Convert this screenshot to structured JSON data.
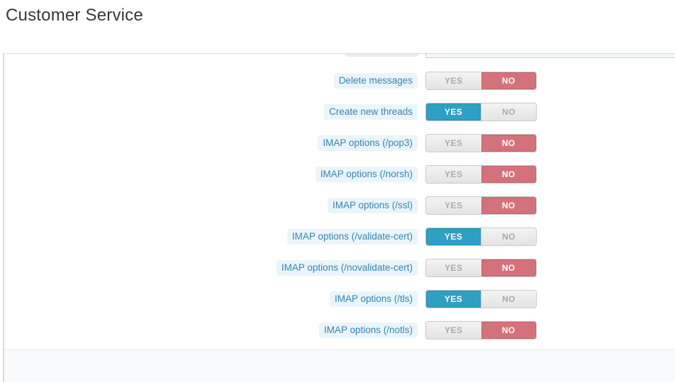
{
  "page": {
    "title": "Customer Service"
  },
  "settings": {
    "toggle": {
      "yes": "YES",
      "no": "NO"
    },
    "rows": [
      {
        "label": "Delete messages",
        "value": "NO"
      },
      {
        "label": "Create new threads",
        "value": "YES"
      },
      {
        "label": "IMAP options (/pop3)",
        "value": "NO"
      },
      {
        "label": "IMAP options (/norsh)",
        "value": "NO"
      },
      {
        "label": "IMAP options (/ssl)",
        "value": "NO"
      },
      {
        "label": "IMAP options (/validate-cert)",
        "value": "YES"
      },
      {
        "label": "IMAP options (/novalidate-cert)",
        "value": "NO"
      },
      {
        "label": "IMAP options (/tls)",
        "value": "YES"
      },
      {
        "label": "IMAP options (/notls)",
        "value": "NO"
      }
    ]
  },
  "colors": {
    "yes_active": "#2f9fc4",
    "no_active": "#d4727c",
    "label_text": "#3585ae",
    "label_bg": "#eaf5fb"
  }
}
